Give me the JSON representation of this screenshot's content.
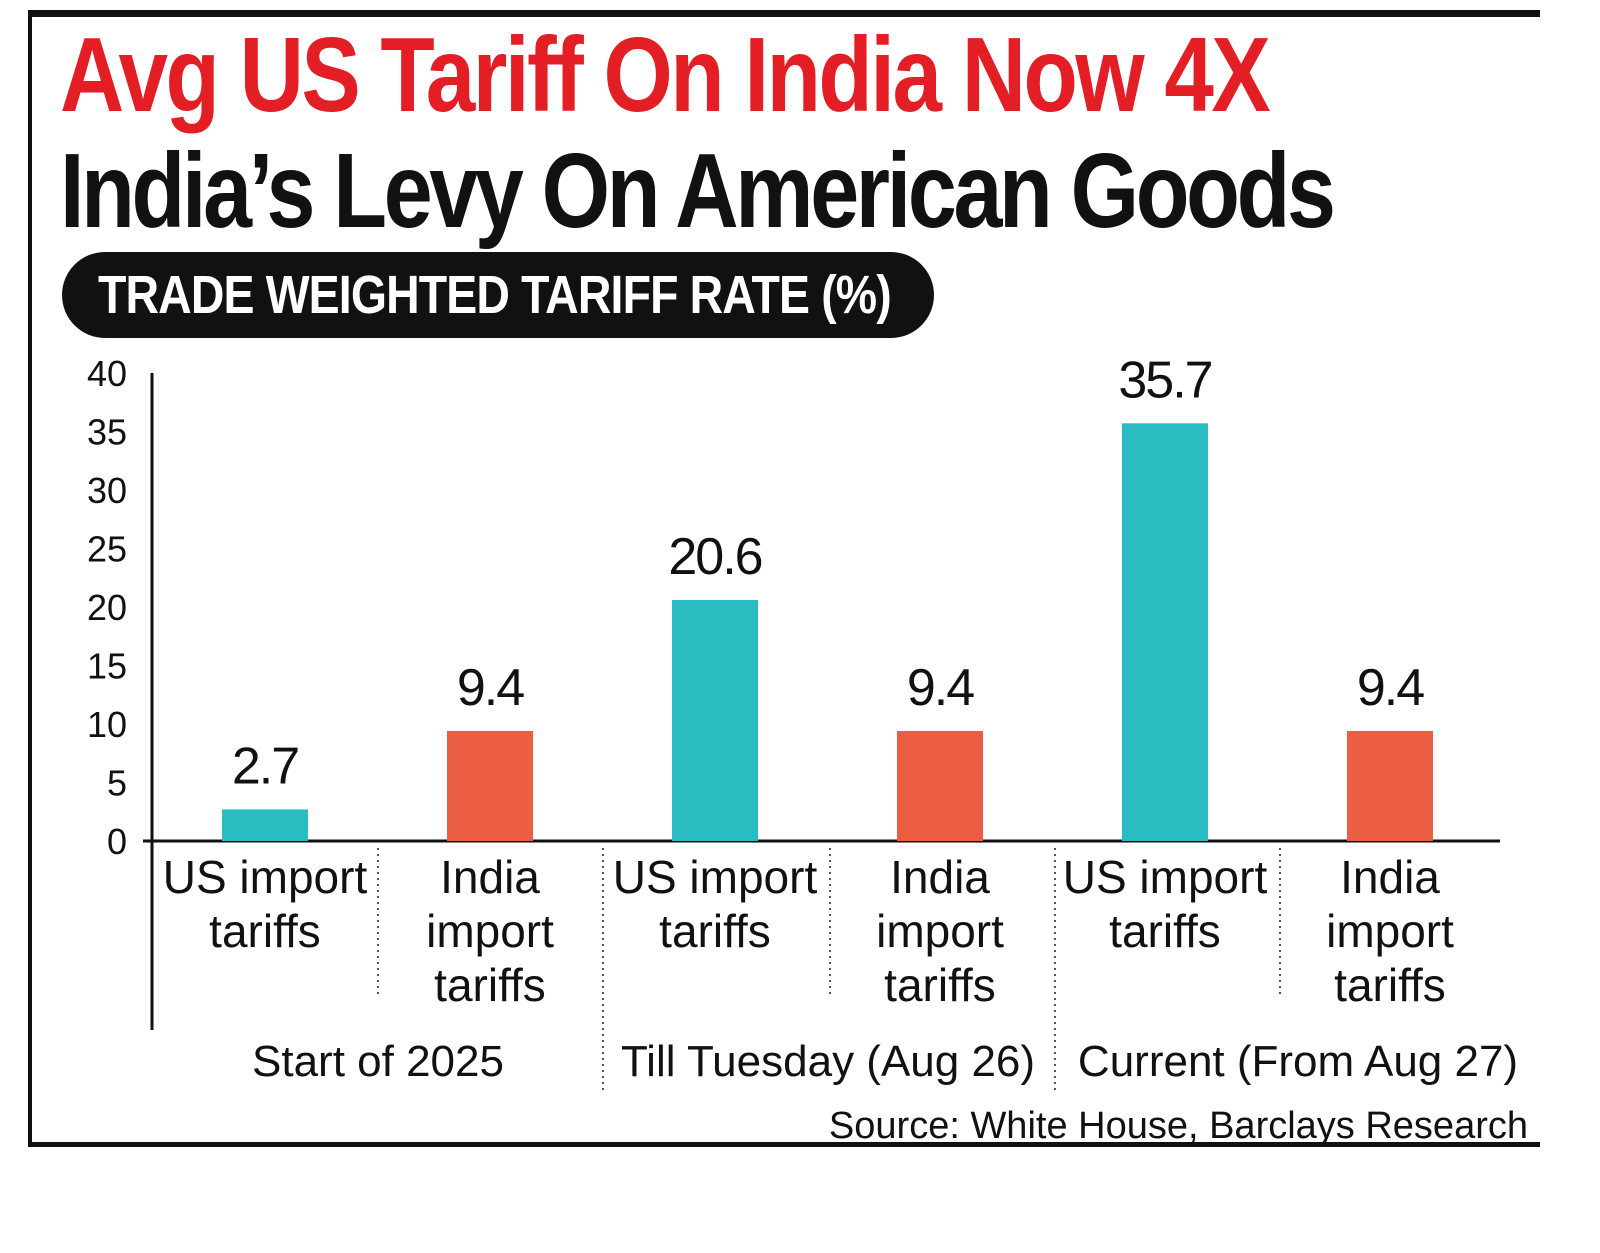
{
  "title": "Avg US Tariff On India Now 4X",
  "subtitle": "India’s Levy On American Goods",
  "pill_label": "TRADE WEIGHTED TARIFF RATE (%)",
  "source": "Source: White House, Barclays Research",
  "colors": {
    "us": "#29bdc1",
    "india": "#ec5e43",
    "title": "#e31e24",
    "text": "#111111"
  },
  "chart_data": {
    "type": "bar",
    "title": "TRADE WEIGHTED TARIFF RATE (%)",
    "ylim": [
      0,
      40
    ],
    "yticks": [
      "0",
      "5",
      "10",
      "15",
      "20",
      "25",
      "30",
      "35",
      "40"
    ],
    "bars": [
      {
        "group": "Start of 2025",
        "label": [
          "US import",
          "tariffs"
        ],
        "value": 2.7,
        "value_label": "2.7",
        "series": "us"
      },
      {
        "group": "Start of 2025",
        "label": [
          "India",
          "import",
          "tariffs"
        ],
        "value": 9.4,
        "value_label": "9.4",
        "series": "india"
      },
      {
        "group": "Till Tuesday (Aug 26)",
        "label": [
          "US import",
          "tariffs"
        ],
        "value": 20.6,
        "value_label": "20.6",
        "series": "us"
      },
      {
        "group": "Till Tuesday (Aug 26)",
        "label": [
          "India",
          "import",
          "tariffs"
        ],
        "value": 9.4,
        "value_label": "9.4",
        "series": "india"
      },
      {
        "group": "Current (From Aug 27)",
        "label": [
          "US import",
          "tariffs"
        ],
        "value": 35.7,
        "value_label": "35.7",
        "series": "us"
      },
      {
        "group": "Current (From Aug 27)",
        "label": [
          "India",
          "import",
          "tariffs"
        ],
        "value": 9.4,
        "value_label": "9.4",
        "series": "india"
      }
    ],
    "groups": [
      "Start of 2025",
      "Till Tuesday (Aug 26)",
      "Current (From Aug 27)"
    ]
  }
}
